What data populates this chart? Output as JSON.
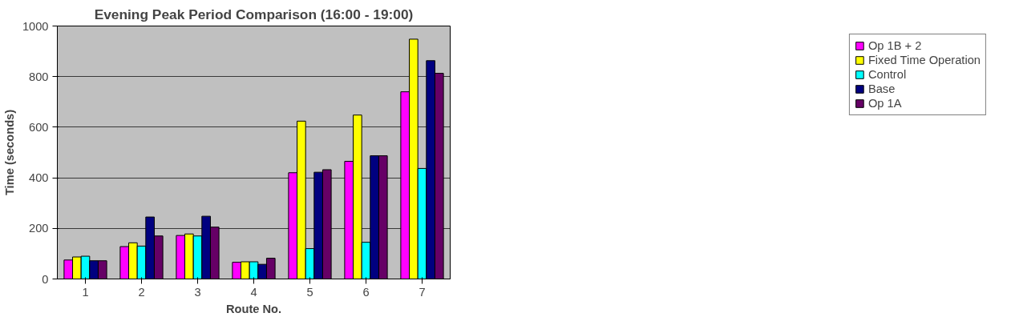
{
  "chart_data": {
    "type": "bar",
    "title": "Evening Peak Period Comparison (16:00 - 19:00)",
    "xlabel": "Route No.",
    "ylabel": "Time (seconds)",
    "categories": [
      "1",
      "2",
      "3",
      "4",
      "5",
      "6",
      "7"
    ],
    "series": [
      {
        "name": "Op 1B + 2",
        "color": "#ff00ff",
        "values": [
          75,
          128,
          172,
          66,
          420,
          465,
          740
        ]
      },
      {
        "name": "Fixed Time Operation",
        "color": "#ffff00",
        "values": [
          87,
          143,
          178,
          68,
          624,
          648,
          948
        ]
      },
      {
        "name": "Control",
        "color": "#00ffff",
        "values": [
          90,
          130,
          170,
          68,
          120,
          145,
          437
        ]
      },
      {
        "name": "Base",
        "color": "#000080",
        "values": [
          72,
          245,
          248,
          58,
          422,
          487,
          863
        ]
      },
      {
        "name": "Op 1A",
        "color": "#660066",
        "values": [
          72,
          170,
          205,
          82,
          432,
          487,
          813
        ]
      }
    ],
    "ylim": [
      0,
      1000
    ],
    "yticks": [
      0,
      200,
      400,
      600,
      800,
      1000
    ],
    "grid": "y",
    "legend": "right"
  }
}
